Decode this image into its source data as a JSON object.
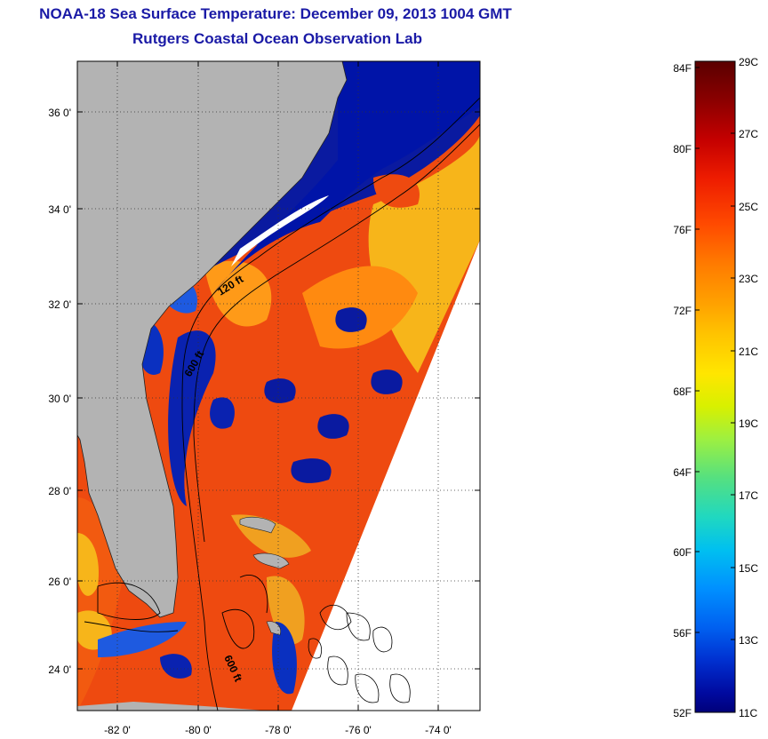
{
  "title": {
    "line1": "NOAA-18 Sea Surface Temperature:  December 09, 2013 1004 GMT",
    "line2": "Rutgers Coastal Ocean Observation Lab"
  },
  "map": {
    "lat_ticks": [
      "36 0'",
      "34 0'",
      "32 0'",
      "30 0'",
      "28 0'",
      "26 0'",
      "24 0'"
    ],
    "lon_ticks": [
      "-82 0'",
      "-80 0'",
      "-78 0'",
      "-76 0'",
      "-74 0'"
    ],
    "contour_labels": [
      "120 ft",
      "600 ft",
      "600 ft"
    ],
    "land_color": "#b3b3b3",
    "cloud_color": "#ffffff"
  },
  "colorbar": {
    "celsius_labels": [
      "29C",
      "27C",
      "25C",
      "23C",
      "21C",
      "19C",
      "17C",
      "15C",
      "13C",
      "11C"
    ],
    "fahrenheit_labels": [
      "84F",
      "80F",
      "76F",
      "72F",
      "68F",
      "64F",
      "60F",
      "56F",
      "52F"
    ],
    "colors": [
      "#5a0000",
      "#8b0000",
      "#c40000",
      "#ee1c00",
      "#ff4a00",
      "#ff7a00",
      "#ffa000",
      "#ffc400",
      "#ffe600",
      "#d8f000",
      "#9ef040",
      "#55e080",
      "#20d8c0",
      "#00c0f0",
      "#0090ff",
      "#0060f0",
      "#0030d0",
      "#000aa0",
      "#00007a"
    ]
  }
}
